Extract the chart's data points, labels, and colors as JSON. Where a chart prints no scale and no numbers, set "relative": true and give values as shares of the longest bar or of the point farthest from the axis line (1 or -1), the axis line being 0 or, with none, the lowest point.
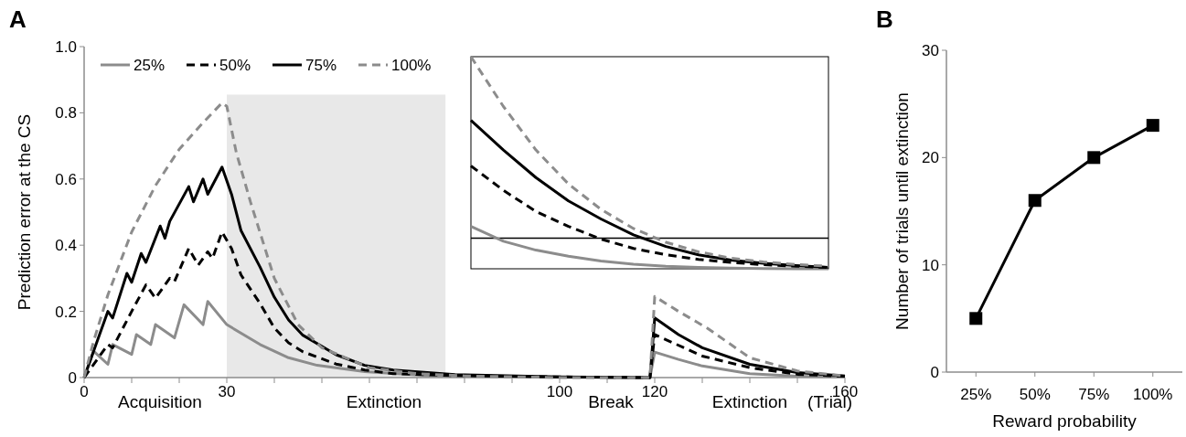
{
  "chart_data": [
    {
      "type": "line",
      "title": "A",
      "ylabel": "Prediction error at the CS",
      "xlabel": "(Trial)",
      "xlim": [
        0,
        160
      ],
      "ylim": [
        0,
        1
      ],
      "xticks": [
        0,
        {
          "value": 10,
          "label": null
        },
        {
          "value": 20,
          "label": null
        },
        30,
        {
          "value": 40,
          "label": null
        },
        {
          "value": 50,
          "label": null
        },
        {
          "value": 60,
          "label": null
        },
        {
          "value": 70,
          "label": null
        },
        {
          "value": 80,
          "label": null
        },
        {
          "value": 90,
          "label": null
        },
        100,
        {
          "value": 110,
          "label": null
        },
        120,
        {
          "value": 130,
          "label": null
        },
        {
          "value": 140,
          "label": null
        },
        {
          "value": 150,
          "label": null
        },
        160
      ],
      "yticks": [
        0,
        0.2,
        0.4,
        0.6,
        0.8,
        {
          "value": 1,
          "label": "1.0"
        }
      ],
      "legend": "top left",
      "marker": "none",
      "bands": [
        {
          "axis": "x",
          "from": 30,
          "to": 76,
          "color": "#e8e8e8"
        }
      ],
      "annotations": [
        "Acquisition",
        "Extinction",
        "Break",
        "Extinction"
      ],
      "series": [
        {
          "name": "25%",
          "color": "#8c8c8c",
          "line_style": "solid",
          "x": [
            0,
            2,
            5,
            6,
            10,
            11,
            14,
            15,
            19,
            21,
            25,
            26,
            30,
            37,
            43,
            49,
            59,
            72,
            90,
            119,
            120,
            125,
            130,
            140,
            150,
            160
          ],
          "values": [
            0,
            0.08,
            0.04,
            0.1,
            0.07,
            0.13,
            0.1,
            0.16,
            0.12,
            0.22,
            0.16,
            0.23,
            0.16,
            0.1,
            0.06,
            0.037,
            0.018,
            0.006,
            0.002,
            0,
            0.077,
            0.055,
            0.035,
            0.012,
            0.004,
            0.002
          ]
        },
        {
          "name": "50%",
          "color": "#000000",
          "line_style": "dashed",
          "x": [
            0,
            3,
            5,
            6,
            10,
            13,
            15,
            18,
            19,
            22,
            24,
            26,
            27,
            29,
            31,
            33,
            37,
            40,
            43,
            46,
            53,
            59,
            65,
            78,
            100,
            119,
            120,
            130,
            140,
            150,
            160
          ],
          "values": [
            0,
            0.06,
            0.1,
            0.09,
            0.2,
            0.28,
            0.24,
            0.3,
            0.29,
            0.39,
            0.34,
            0.38,
            0.36,
            0.44,
            0.39,
            0.31,
            0.224,
            0.15,
            0.105,
            0.078,
            0.041,
            0.023,
            0.012,
            0.006,
            0.002,
            0,
            0.13,
            0.065,
            0.03,
            0.01,
            0.004
          ]
        },
        {
          "name": "75%",
          "color": "#000000",
          "line_style": "solid",
          "x": [
            0,
            5,
            6,
            9,
            10,
            12,
            13,
            16,
            17,
            18,
            22,
            23,
            25,
            26,
            29,
            31,
            33,
            37,
            40,
            43,
            46,
            53,
            59,
            65,
            78,
            100,
            119,
            120,
            125,
            130,
            140,
            150,
            160
          ],
          "values": [
            0,
            0.2,
            0.18,
            0.315,
            0.288,
            0.375,
            0.348,
            0.458,
            0.421,
            0.472,
            0.577,
            0.531,
            0.6,
            0.554,
            0.636,
            0.554,
            0.444,
            0.334,
            0.243,
            0.174,
            0.128,
            0.069,
            0.037,
            0.023,
            0.009,
            0.002,
            0,
            0.18,
            0.13,
            0.09,
            0.04,
            0.015,
            0.005
          ]
        },
        {
          "name": "100%",
          "color": "#8c8c8c",
          "line_style": "dashed",
          "x": [
            0,
            2,
            5,
            10,
            15,
            20,
            25,
            29,
            30,
            32,
            35,
            40,
            45,
            50,
            60,
            70,
            80,
            100,
            119,
            120,
            125,
            131,
            140,
            150,
            160
          ],
          "values": [
            0,
            0.11,
            0.25,
            0.44,
            0.58,
            0.69,
            0.77,
            0.83,
            0.82,
            0.68,
            0.53,
            0.3,
            0.16,
            0.09,
            0.03,
            0.012,
            0.005,
            0,
            0,
            0.245,
            0.2,
            0.15,
            0.06,
            0.02,
            0.005
          ]
        }
      ]
    },
    {
      "type": "line",
      "relative": true,
      "legend": false,
      "marker": "none",
      "categories": [
        null,
        null,
        null,
        null,
        null,
        null,
        null,
        null,
        null,
        null,
        null,
        null
      ],
      "ref_lines": [
        {
          "axis": "y",
          "value": 0.144,
          "color": "#000000"
        }
      ],
      "series": [
        {
          "color": "#8c8c8c",
          "line_style": "solid",
          "values": [
            0.2,
            0.13,
            0.088,
            0.059,
            0.037,
            0.022,
            0.012,
            0.006,
            0.003,
            0.0015,
            0,
            0
          ]
        },
        {
          "color": "#000000",
          "line_style": "dashed",
          "values": [
            0.485,
            0.37,
            0.27,
            0.2,
            0.14,
            0.096,
            0.066,
            0.044,
            0.03,
            0.019,
            0.012,
            0.006
          ]
        },
        {
          "color": "#000000",
          "line_style": "solid",
          "values": [
            0.7,
            0.56,
            0.43,
            0.32,
            0.235,
            0.16,
            0.105,
            0.066,
            0.041,
            0.026,
            0.015,
            0.007
          ]
        },
        {
          "color": "#8c8c8c",
          "line_style": "dashed",
          "values": [
            1,
            0.765,
            0.56,
            0.4,
            0.28,
            0.19,
            0.125,
            0.08,
            0.05,
            0.032,
            0.02,
            0.012
          ]
        }
      ]
    },
    {
      "type": "line",
      "title": "B",
      "xlabel": "Reward probability",
      "ylabel": "Number of trials until extinction",
      "categories": [
        "25%",
        "50%",
        "75%",
        "100%"
      ],
      "ylim": [
        0,
        30
      ],
      "yticks": [
        0,
        10,
        20,
        30
      ],
      "legend": false,
      "marker": "square",
      "series": [
        {
          "color": "#000000",
          "line_style": "solid",
          "values": [
            5,
            16,
            20,
            23
          ]
        }
      ]
    }
  ]
}
